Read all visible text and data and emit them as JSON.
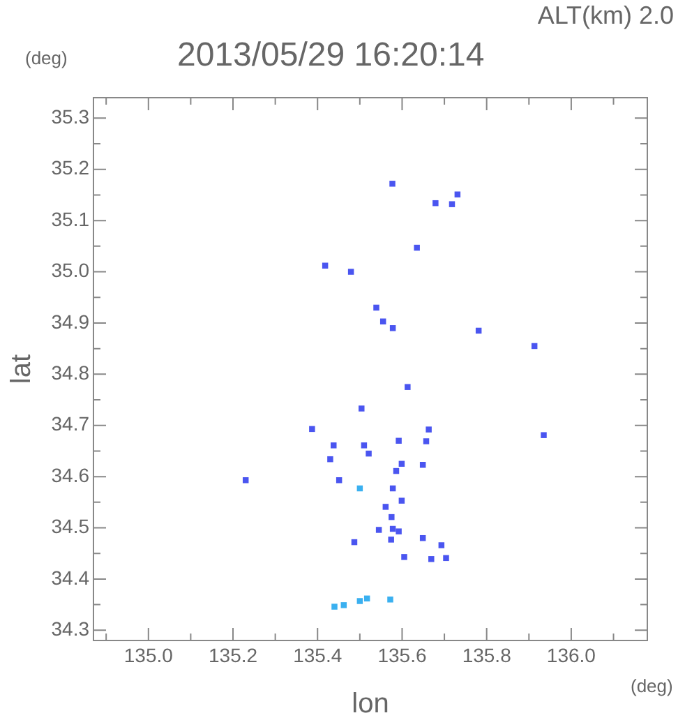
{
  "chart_data": {
    "type": "scatter",
    "title": "2013/05/29 16:20:14",
    "subtitle": "ALT(km) 2.0",
    "xlabel": "lon",
    "ylabel": "lat",
    "annotations": [
      "(deg)",
      "(deg)"
    ],
    "xlim": [
      134.87,
      136.18
    ],
    "ylim": [
      34.28,
      35.34
    ],
    "xticks": [
      {
        "value": 134.9,
        "label": null
      },
      {
        "value": 135,
        "label": "135.0"
      },
      {
        "value": 135.1,
        "label": null
      },
      {
        "value": 135.2,
        "label": "135.2"
      },
      {
        "value": 135.3,
        "label": null
      },
      {
        "value": 135.4,
        "label": "135.4"
      },
      {
        "value": 135.5,
        "label": null
      },
      {
        "value": 135.6,
        "label": "135.6"
      },
      {
        "value": 135.7,
        "label": null
      },
      {
        "value": 135.8,
        "label": "135.8"
      },
      {
        "value": 135.9,
        "label": null
      },
      {
        "value": 136,
        "label": "136.0"
      },
      {
        "value": 136.1,
        "label": null
      }
    ],
    "yticks": [
      34.3,
      {
        "value": 34.35,
        "label": null
      },
      34.4,
      {
        "value": 34.45,
        "label": null
      },
      34.5,
      {
        "value": 34.55,
        "label": null
      },
      34.6,
      {
        "value": 34.65,
        "label": null
      },
      34.7,
      {
        "value": 34.75,
        "label": null
      },
      34.8,
      {
        "value": 34.85,
        "label": null
      },
      34.9,
      {
        "value": 34.95,
        "label": null
      },
      {
        "value": 35,
        "label": "35.0"
      },
      {
        "value": 35.05,
        "label": null
      },
      35.1,
      {
        "value": 35.15,
        "label": null
      },
      35.2,
      {
        "value": 35.25,
        "label": null
      },
      35.3
    ],
    "grid": false,
    "legend": false,
    "marker": "square",
    "series": [
      {
        "color": "#4a55f0",
        "x": [
          135.577,
          135.731,
          135.679,
          135.718,
          135.635,
          135.418,
          135.479,
          135.539,
          135.555,
          135.578,
          135.781,
          135.913,
          135.613,
          135.504,
          135.387,
          135.663,
          135.935,
          135.438,
          135.51,
          135.592,
          135.657,
          135.521,
          135.43,
          135.599,
          135.649,
          135.586,
          135.23,
          135.451,
          135.578,
          135.599,
          135.561,
          135.575,
          135.578,
          135.545,
          135.592,
          135.574,
          135.487,
          135.649,
          135.693,
          135.605,
          135.669,
          135.704
        ],
        "values": [
          35.172,
          35.151,
          35.134,
          35.132,
          35.047,
          35.012,
          35.0,
          34.93,
          34.903,
          34.89,
          34.885,
          34.855,
          34.775,
          34.733,
          34.693,
          34.692,
          34.681,
          34.661,
          34.661,
          34.67,
          34.669,
          34.645,
          34.634,
          34.625,
          34.623,
          34.611,
          34.593,
          34.593,
          34.577,
          34.553,
          34.541,
          34.521,
          34.498,
          34.496,
          34.493,
          34.477,
          34.472,
          34.48,
          34.466,
          34.443,
          34.439,
          34.441
        ]
      },
      {
        "color": "#3ab0f0",
        "x": [
          135.5,
          135.44,
          135.462,
          135.5,
          135.517,
          135.572
        ],
        "values": [
          34.577,
          34.346,
          34.349,
          34.357,
          34.362,
          34.36
        ]
      }
    ]
  }
}
